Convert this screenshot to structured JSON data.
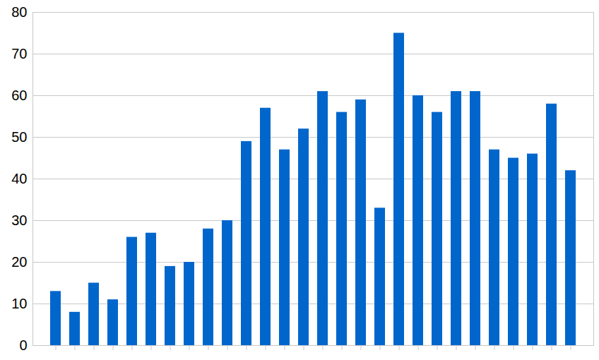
{
  "chart_data": {
    "type": "bar",
    "categories": [
      null,
      null,
      null,
      null,
      null,
      null,
      null,
      null,
      null,
      null,
      null,
      null,
      null,
      null,
      null,
      null,
      null,
      null,
      null,
      null,
      null,
      null,
      null,
      null,
      null,
      null,
      null,
      null
    ],
    "values": [
      13,
      8,
      15,
      11,
      26,
      27,
      19,
      20,
      28,
      30,
      49,
      57,
      47,
      52,
      61,
      56,
      59,
      33,
      75,
      60,
      56,
      61,
      61,
      47,
      45,
      46,
      58,
      42
    ],
    "color": "#0066cc",
    "ylim": [
      0,
      80
    ],
    "yticks": [
      0,
      10,
      20,
      30,
      40,
      50,
      60,
      70,
      80
    ],
    "grid": true,
    "tick_labels": "y"
  }
}
